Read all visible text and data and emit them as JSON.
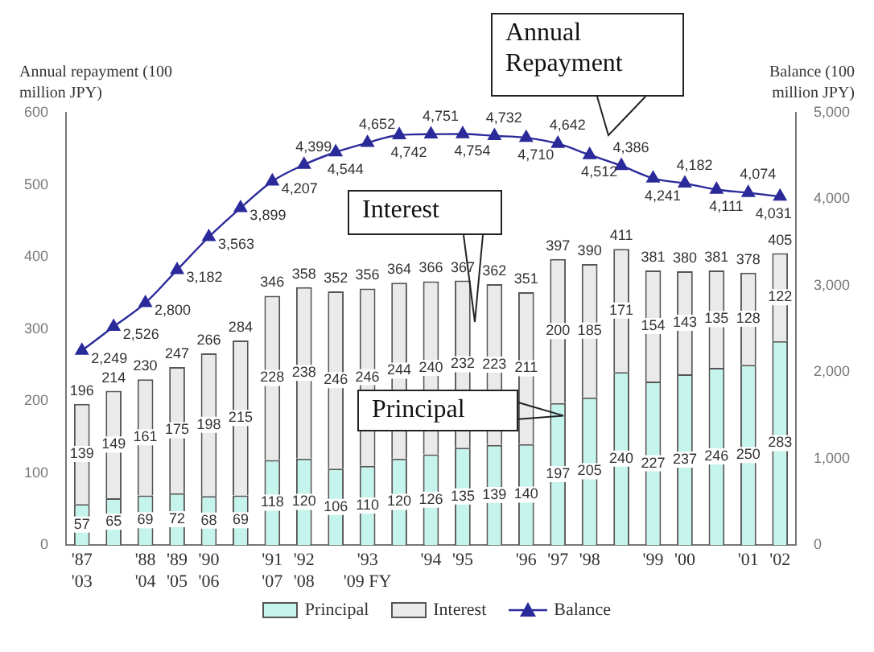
{
  "chart_data": {
    "type": "bar",
    "stacked": true,
    "ylabel": "Annual repayment (100 million JPY)",
    "y2label": "Balance (100 million JPY)",
    "categories": [
      "'87\n'03",
      null,
      "'88\n'04",
      "'89\n'05",
      "'90\n'06",
      null,
      "'91\n'07",
      "'92\n'08",
      null,
      "'93\n'09 FY",
      null,
      "'94",
      "'95",
      null,
      "'96",
      "'97",
      "'98",
      null,
      "'99",
      "'00",
      null,
      "'01",
      "'02"
    ],
    "series": [
      {
        "name": "Principal",
        "color": "#c4f4ec",
        "values": [
          57,
          65,
          69,
          72,
          68,
          69,
          118,
          120,
          106,
          110,
          120,
          126,
          135,
          139,
          140,
          197,
          205,
          240,
          227,
          237,
          246,
          250,
          283
        ],
        "value_labels": [
          "57",
          "65",
          "69",
          "72",
          "68",
          "69",
          "118",
          "120",
          "106",
          "110",
          "120",
          "126",
          "135",
          "139",
          "140",
          "197",
          "205",
          "240",
          "227",
          "237",
          "246",
          "250",
          "283"
        ]
      },
      {
        "name": "Interest",
        "color": "#eaeaea",
        "values": [
          139,
          149,
          161,
          175,
          198,
          215,
          228,
          238,
          246,
          246,
          244,
          240,
          232,
          223,
          211,
          200,
          185,
          171,
          154,
          143,
          135,
          128,
          122
        ],
        "value_labels": [
          "139",
          "149",
          "161",
          "175",
          "198",
          "215",
          "228",
          "238",
          "246",
          "246",
          "244",
          "240",
          "232",
          "223",
          "211",
          "200",
          "185",
          "171",
          "154",
          "143",
          "135",
          "128",
          "122"
        ]
      },
      {
        "name": "Balance",
        "type": "line",
        "axis": "y2",
        "color": "#2a2a9a",
        "values": [
          2249,
          2526,
          2800,
          3182,
          3563,
          3899,
          4207,
          4399,
          4544,
          4652,
          4742,
          4751,
          4754,
          4732,
          4710,
          4642,
          4512,
          4386,
          4241,
          4182,
          4111,
          4074,
          4031
        ],
        "value_labels": [
          "2,249",
          "2,526",
          "2,800",
          "3,182",
          "3,563",
          "3,899",
          "4,207",
          "4,399",
          "4,544",
          "4,652",
          "4,742",
          "4,751",
          "4,754",
          "4,732",
          "4,710",
          "4,642",
          "4,512",
          "4,386",
          "4,241",
          "4,182",
          "4,111",
          "4,074",
          "4,031"
        ]
      }
    ],
    "totals": [
      "196",
      "214",
      "230",
      "247",
      "266",
      "284",
      "346",
      "358",
      "352",
      "356",
      "364",
      "366",
      "367",
      "362",
      "351",
      "397",
      "390",
      "411",
      "381",
      "380",
      "381",
      "378",
      "405"
    ],
    "ylim": [
      0,
      600
    ],
    "yticks": [
      0,
      100,
      200,
      300,
      400,
      500,
      600
    ],
    "y2lim": [
      0,
      5000
    ],
    "y2ticks": [
      {
        "value": 0,
        "label": "0"
      },
      {
        "value": 1000,
        "label": "1,000"
      },
      {
        "value": 2000,
        "label": "2,000"
      },
      {
        "value": 3000,
        "label": "3,000"
      },
      {
        "value": 4000,
        "label": "4,000"
      },
      {
        "value": 5000,
        "label": "5,000"
      }
    ],
    "annotations": [
      "Annual Repayment",
      "Interest",
      "Principal"
    ],
    "legend": "bottom",
    "marker": "triangle",
    "line_style": "solid",
    "grid": false
  }
}
